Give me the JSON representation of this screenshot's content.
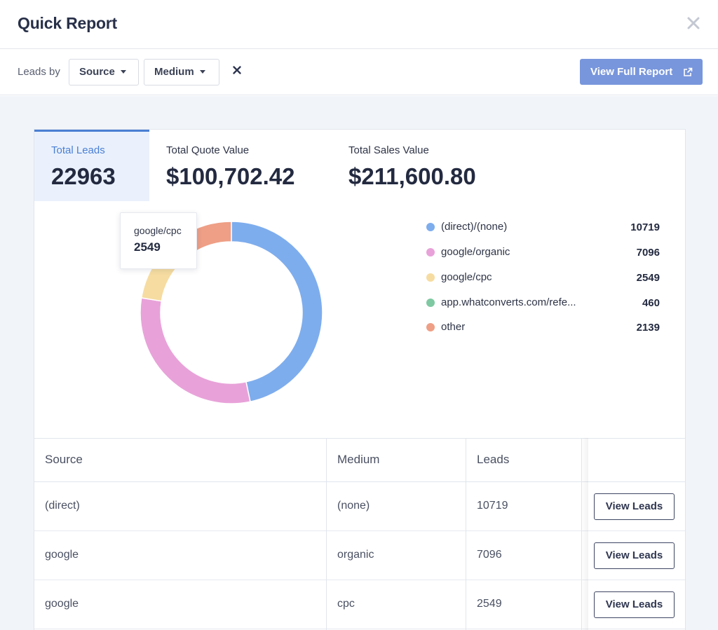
{
  "header": {
    "title": "Quick Report"
  },
  "toolbar": {
    "leads_by_label": "Leads by",
    "source_dropdown": "Source",
    "medium_dropdown": "Medium",
    "full_report_button": "View Full Report"
  },
  "stats": {
    "total_leads": {
      "label": "Total Leads",
      "value": "22963"
    },
    "total_quote": {
      "label": "Total Quote Value",
      "value": "$100,702.42"
    },
    "total_sales": {
      "label": "Total Sales Value",
      "value": "$211,600.80"
    }
  },
  "tooltip": {
    "name": "google/cpc",
    "value": "2549"
  },
  "chart_data": {
    "type": "pie",
    "labels": [
      "(direct)/(none)",
      "google/organic",
      "google/cpc",
      "app.whatconverts.com/refe...",
      "other"
    ],
    "values": [
      10719,
      7096,
      2549,
      460,
      2139
    ],
    "colors": [
      "#7eaded",
      "#e8a2d9",
      "#f6dca1",
      "#7fc9a2",
      "#ee9f86"
    ],
    "donut": true
  },
  "table": {
    "headers": [
      "Source",
      "Medium",
      "Leads"
    ],
    "rows": [
      {
        "source": "(direct)",
        "medium": "(none)",
        "leads": "10719",
        "action": "View Leads"
      },
      {
        "source": "google",
        "medium": "organic",
        "leads": "7096",
        "action": "View Leads"
      },
      {
        "source": "google",
        "medium": "cpc",
        "leads": "2549",
        "action": "View Leads"
      }
    ]
  }
}
